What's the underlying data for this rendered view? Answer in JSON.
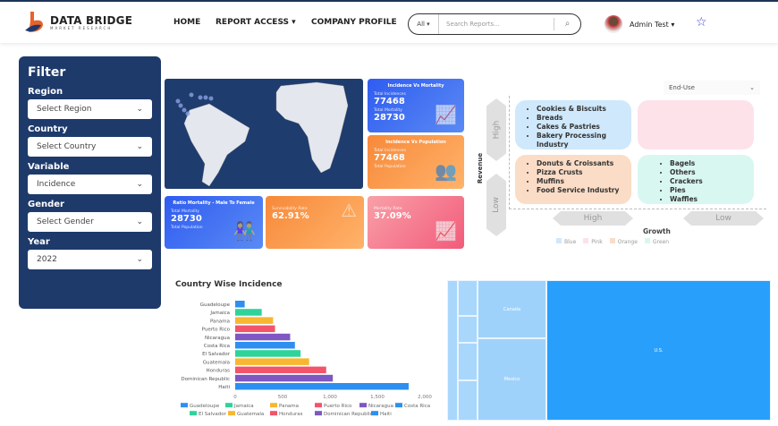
{
  "header": {
    "brand": "DATA BRIDGE",
    "brand_sub": "MARKET RESEARCH",
    "nav": [
      "HOME",
      "REPORT ACCESS ▾",
      "COMPANY PROFILE"
    ],
    "search_scope": "All ▾",
    "search_placeholder": "Search Reports...",
    "user": "Admin Test ▾"
  },
  "filter": {
    "title": "Filter",
    "fields": [
      {
        "label": "Region",
        "value": "Select Region"
      },
      {
        "label": "Country",
        "value": "Select Country"
      },
      {
        "label": "Variable",
        "value": "Incidence"
      },
      {
        "label": "Gender",
        "value": "Select Gender"
      },
      {
        "label": "Year",
        "value": "2022"
      }
    ]
  },
  "cards": {
    "inc_mort": {
      "title": "Incidence Vs Mortality",
      "l1": "Total Incidences",
      "v1": "77468",
      "l2": "Total Mortality",
      "v2": "28730"
    },
    "inc_pop": {
      "title": "Incidence Vs Population",
      "l1": "Total Incidences",
      "v1": "77468",
      "l2": "Total Population"
    },
    "ratio": {
      "title": "Ratio Mortality - Male To Female",
      "l1": "Total Mortality",
      "v1": "28730",
      "l2": "Total Population"
    },
    "surv": {
      "label": "Survivability Rate",
      "value": "62.91%"
    },
    "mort": {
      "label": "Mortality Rate",
      "value": "37.09%"
    }
  },
  "quadrant": {
    "dropdown": "End-Use",
    "y_axis": "Revenue",
    "x_axis": "Growth",
    "y_high": "High",
    "y_low": "Low",
    "x_high": "High",
    "x_low": "Low",
    "blue": [
      "Cookies & Biscuits",
      "Breads",
      "Cakes & Pastries",
      "Bakery Processing Industry"
    ],
    "orange": [
      "Donuts & Croissants",
      "Pizza Crusts",
      "Muffins",
      "Food Service Industry"
    ],
    "green": [
      "Bagels",
      "Others",
      "Crackers",
      "Pies",
      "Waffles"
    ],
    "legend": [
      {
        "name": "Blue",
        "color": "#cfe8fb"
      },
      {
        "name": "Pink",
        "color": "#fde2ea"
      },
      {
        "name": "Orange",
        "color": "#fbdcc6"
      },
      {
        "name": "Green",
        "color": "#d9f7f1"
      }
    ]
  },
  "chart_data": {
    "type": "bar",
    "orientation": "horizontal",
    "title": "Country Wise Incidence",
    "categories": [
      "Guadeloupe",
      "Jamaica",
      "Panama",
      "Puerto Rico",
      "Nicaragua",
      "Costa Rica",
      "El Salvador",
      "Guatemala",
      "Honduras",
      "Dominican Republic",
      "Haiti"
    ],
    "values": [
      100,
      280,
      400,
      420,
      580,
      630,
      690,
      780,
      960,
      1030,
      1830
    ],
    "colors": [
      "#2e8ff0",
      "#2fd39a",
      "#f7b731",
      "#f2546a",
      "#7e57c2",
      "#2e8ff0",
      "#2fd39a",
      "#f7b731",
      "#f2546a",
      "#7e57c2",
      "#2e8ff0"
    ],
    "xticks": [
      "0",
      "500",
      "1,000",
      "1,500",
      "2,000"
    ],
    "xlim": [
      0,
      2000
    ],
    "legend": "bottom"
  },
  "treemap": {
    "labels": [
      "Canada",
      "Mexico",
      "U.S."
    ]
  }
}
